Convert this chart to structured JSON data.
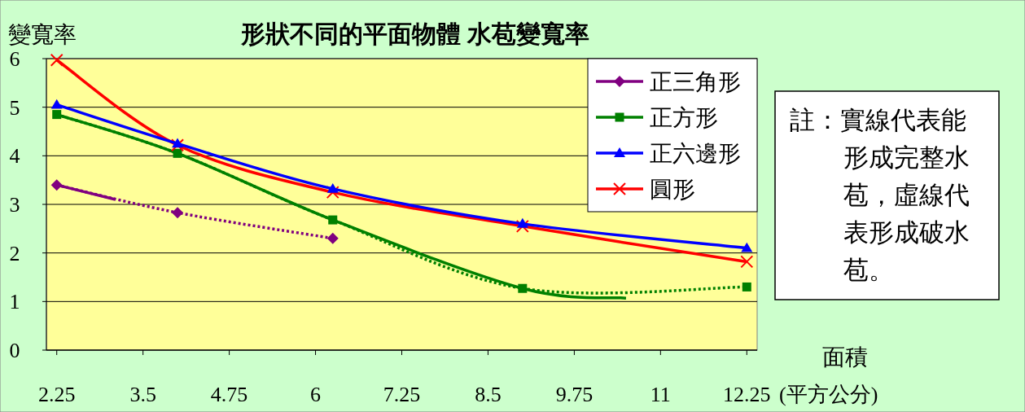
{
  "chart_data": {
    "type": "line",
    "title": "形狀不同的平面物體  水苞變寬率",
    "ylabel": "變寬率",
    "xlabel": "面積",
    "annotations": [
      "註：實線代表能形成完整水苞，虛線代表形成破水苞。",
      "(平方公分)"
    ],
    "xlim": [
      2.1,
      12.4
    ],
    "xticks": [
      2.25,
      3.5,
      4.75,
      6,
      7.25,
      8.5,
      9.75,
      11,
      12.25
    ],
    "ylim": [
      0,
      6
    ],
    "yticks": [
      0,
      1,
      2,
      3,
      4,
      5,
      6
    ],
    "grid": "y",
    "legend": "top right",
    "series": [
      {
        "name": "正三角形",
        "color": "#800080",
        "marker": "diamond",
        "line_style": "dotted",
        "x": [
          2.25,
          4,
          6.25
        ],
        "values": [
          3.4,
          2.83,
          2.3
        ]
      },
      {
        "name": "正方形",
        "color": "#008000",
        "marker": "square",
        "line_style": "dotted",
        "x": [
          2.25,
          4,
          6.25,
          9,
          12.25
        ],
        "values": [
          4.85,
          4.05,
          2.68,
          1.27,
          1.3
        ]
      },
      {
        "name": "正六邊形",
        "color": "#0000ff",
        "marker": "triangle",
        "line_style": "solid",
        "x": [
          2.25,
          4,
          6.25,
          9,
          12.25
        ],
        "values": [
          5.05,
          4.25,
          3.32,
          2.6,
          2.1
        ]
      },
      {
        "name": "圓形",
        "color": "#ff0000",
        "marker": "cross",
        "line_style": "solid",
        "x": [
          2.25,
          4,
          6.25,
          9,
          12.25
        ],
        "values": [
          5.97,
          4.22,
          3.25,
          2.55,
          1.82
        ]
      },
      {
        "color": "#800080",
        "marker": "none",
        "line_style": "solid",
        "x": [
          2.25,
          3.1
        ],
        "values": [
          3.4,
          3.1
        ]
      },
      {
        "color": "#008000",
        "marker": "none",
        "line_style": "solid",
        "x": [
          2.25,
          4,
          6.25,
          9,
          10.5
        ],
        "values": [
          4.85,
          4.05,
          2.68,
          1.27,
          1.07
        ]
      }
    ]
  }
}
